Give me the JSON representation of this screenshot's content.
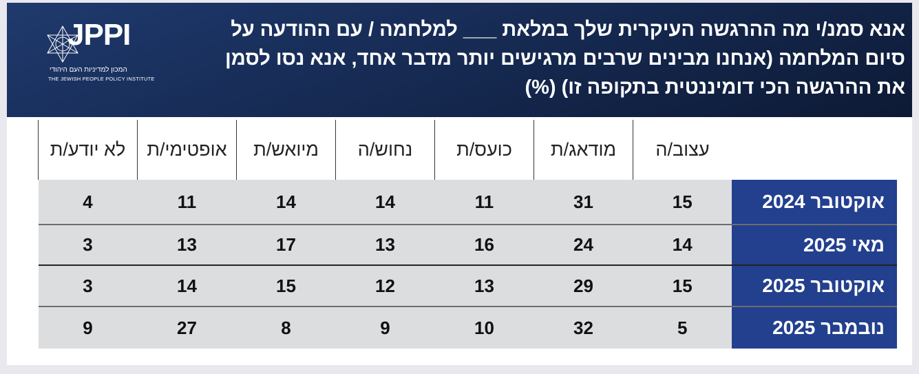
{
  "header": {
    "title": "אנא סמנ/י מה ההרגשה העיקרית שלך במלאת ___ למלחמה / עם ההודעה על סיום המלחמה (אנחנו מבינים שרבים מרגישים יותר מדבר אחד, אנא נסו לסמן את ההרגשה הכי דומיננטית בתקופה זו) (%)",
    "header_color": "#1a3160"
  },
  "logo": {
    "name": "JPPI",
    "hebrew": "המכון למדיניות העם היהודי",
    "english": "THE JEWISH PEOPLE POLICY INSTITUTE"
  },
  "chart_data": {
    "type": "table",
    "columns": [
      "עצוב/ה",
      "מודאג/ת",
      "כועס/ת",
      "נחוש/ה",
      "מיואש/ת",
      "אופטימי/ת",
      "לא יודע/ת"
    ],
    "rows": [
      {
        "label": "אוקטובר 2024",
        "values": [
          15,
          31,
          11,
          14,
          14,
          11,
          4
        ]
      },
      {
        "label": "מאי 2025",
        "values": [
          14,
          24,
          16,
          13,
          17,
          13,
          3
        ]
      },
      {
        "label": "אוקטובר 2025",
        "values": [
          15,
          29,
          13,
          12,
          15,
          14,
          3
        ]
      },
      {
        "label": "נובמבר 2025",
        "values": [
          5,
          32,
          10,
          9,
          8,
          27,
          9
        ]
      }
    ],
    "unit": "%",
    "row_label_color": "#23408f",
    "cell_color": "#dcdddf"
  }
}
